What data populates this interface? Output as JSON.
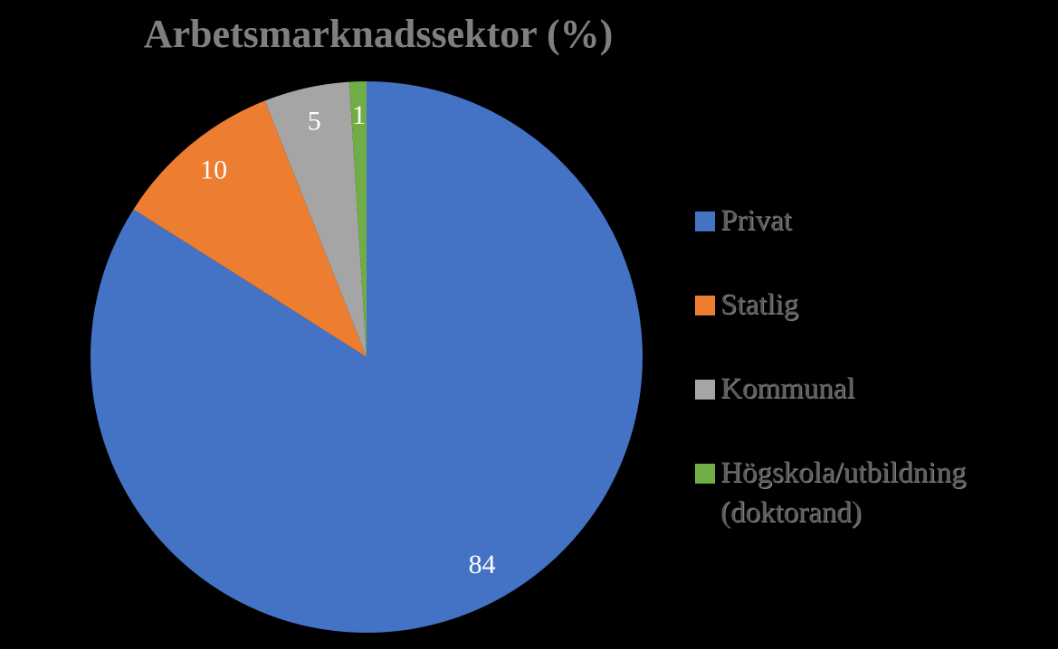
{
  "chart_data": {
    "type": "pie",
    "title": "Arbetsmarknadssektor (%)",
    "categories": [
      "Privat",
      "Statlig",
      "Kommunal",
      "Högskola/utbildning (doktorand)"
    ],
    "values": [
      84,
      10,
      5,
      1
    ],
    "colors": [
      "#4472c4",
      "#ed7d31",
      "#a5a5a5",
      "#70ad47"
    ]
  }
}
